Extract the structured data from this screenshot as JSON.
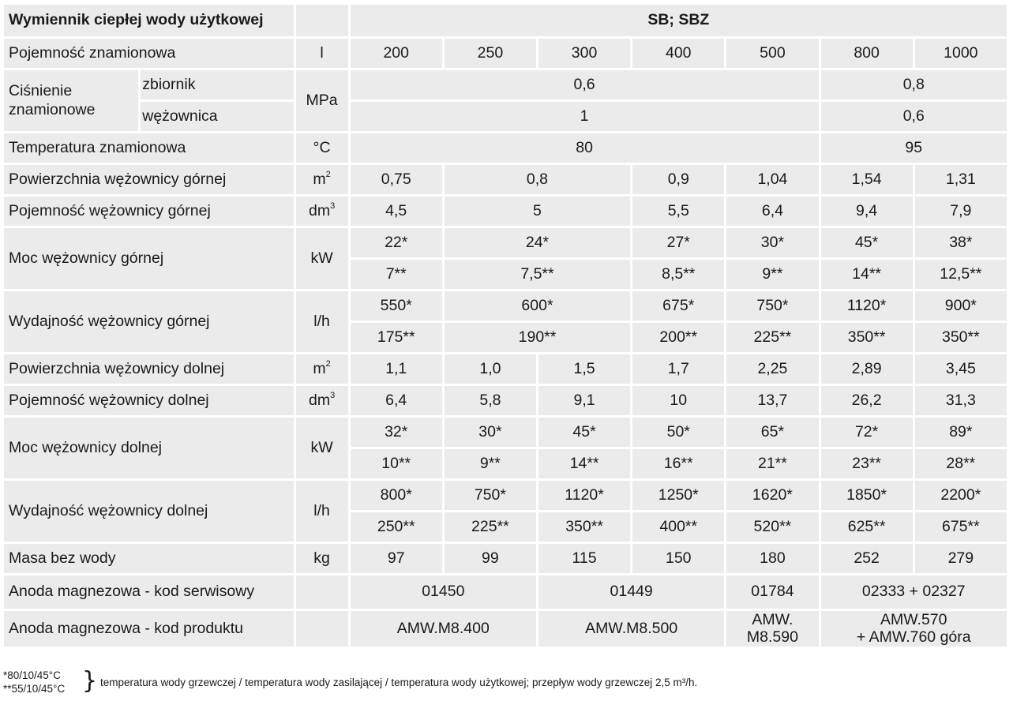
{
  "header": {
    "title": "Wymiennik ciepłej wody użytkowej",
    "models": "SB; SBZ"
  },
  "rows": {
    "capacity": {
      "label": "Pojemność znamionowa",
      "unit": "l",
      "values": [
        "200",
        "250",
        "300",
        "400",
        "500",
        "800",
        "1000"
      ]
    },
    "pressure": {
      "label": "Ciśnienie znamionowe",
      "unit": "MPa",
      "tank": {
        "label": "zbiornik",
        "v1": "0,6",
        "v2": "0,8"
      },
      "coil": {
        "label": "wężownica",
        "v1": "1",
        "v2": "0,6"
      }
    },
    "temperature": {
      "label": "Temperatura znamionowa",
      "unit": "°C",
      "v1": "80",
      "v2": "95"
    },
    "upper_area": {
      "label": "Powierzchnia wężownicy górnej",
      "unit_base": "m",
      "unit_sup": "2",
      "values": [
        "0,75",
        "0,8",
        "0,9",
        "1,04",
        "1,54",
        "1,31"
      ]
    },
    "upper_volume": {
      "label": "Pojemność wężownicy górnej",
      "unit_base": "dm",
      "unit_sup": "3",
      "values": [
        "4,5",
        "5",
        "5,5",
        "6,4",
        "9,4",
        "7,9"
      ]
    },
    "upper_power": {
      "label": "Moc wężownicy górnej",
      "unit": "kW",
      "a": [
        "22*",
        "24*",
        "27*",
        "30*",
        "45*",
        "38*"
      ],
      "b": [
        "7**",
        "7,5**",
        "8,5**",
        "9**",
        "14**",
        "12,5**"
      ]
    },
    "upper_output": {
      "label": "Wydajność wężownicy górnej",
      "unit": "l/h",
      "a": [
        "550*",
        "600*",
        "675*",
        "750*",
        "1120*",
        "900*"
      ],
      "b": [
        "175**",
        "190**",
        "200**",
        "225**",
        "350**",
        "350**"
      ]
    },
    "lower_area": {
      "label": "Powierzchnia wężownicy dolnej",
      "unit_base": "m",
      "unit_sup": "2",
      "values": [
        "1,1",
        "1,0",
        "1,5",
        "1,7",
        "2,25",
        "2,89",
        "3,45"
      ]
    },
    "lower_volume": {
      "label": "Pojemność wężownicy dolnej",
      "unit_base": "dm",
      "unit_sup": "3",
      "values": [
        "6,4",
        "5,8",
        "9,1",
        "10",
        "13,7",
        "26,2",
        "31,3"
      ]
    },
    "lower_power": {
      "label": "Moc wężownicy dolnej",
      "unit": "kW",
      "a": [
        "32*",
        "30*",
        "45*",
        "50*",
        "65*",
        "72*",
        "89*"
      ],
      "b": [
        "10**",
        "9**",
        "14**",
        "16**",
        "21**",
        "23**",
        "28**"
      ]
    },
    "lower_output": {
      "label": "Wydajność wężownicy dolnej",
      "unit": "l/h",
      "a": [
        "800*",
        "750*",
        "1120*",
        "1250*",
        "1620*",
        "1850*",
        "2200*"
      ],
      "b": [
        "250**",
        "225**",
        "350**",
        "400**",
        "520**",
        "625**",
        "675**"
      ]
    },
    "mass": {
      "label": "Masa bez wody",
      "unit": "kg",
      "values": [
        "97",
        "99",
        "115",
        "150",
        "180",
        "252",
        "279"
      ]
    },
    "anode_service": {
      "label": "Anoda magnezowa - kod serwisowy",
      "values": [
        "01450",
        "01449",
        "01784",
        "02333 + 02327"
      ]
    },
    "anode_product": {
      "label": "Anoda magnezowa - kod produktu",
      "v1": "AMW.M8.400",
      "v2": "AMW.M8.500",
      "v3a": "AMW.",
      "v3b": "M8.590",
      "v4a": "AMW.570",
      "v4b": "+ AMW.760 góra"
    }
  },
  "footnotes": {
    "note1": "*80/10/45°C",
    "note2": "**55/10/45°C",
    "brace": "}",
    "text": "temperatura wody grzewczej / temperatura wody zasilającej / temperatura wody użytkowej; przepływ wody grzewczej 2,5 m³/h."
  }
}
